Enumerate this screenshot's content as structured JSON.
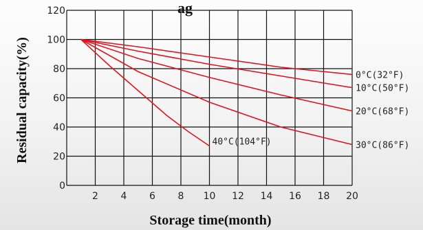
{
  "title_fragment": "ag",
  "chart_data": {
    "type": "line",
    "title": "",
    "xlabel": "Storage time(month)",
    "ylabel": "Residual capacity(%)",
    "xlim": [
      0,
      20
    ],
    "ylim": [
      0,
      120
    ],
    "x_ticks": [
      2,
      4,
      6,
      8,
      10,
      12,
      14,
      16,
      18,
      20
    ],
    "y_ticks": [
      0,
      20,
      40,
      60,
      80,
      100,
      120
    ],
    "grid": true,
    "series": [
      {
        "name": "0°C(32°F)",
        "color": "#e0141e",
        "x": [
          1,
          5,
          10,
          15,
          20
        ],
        "y": [
          100,
          95,
          88,
          81,
          76
        ]
      },
      {
        "name": "10°C(50°F)",
        "color": "#e0141e",
        "x": [
          1,
          5,
          10,
          15,
          20
        ],
        "y": [
          100,
          92,
          83,
          75,
          67
        ]
      },
      {
        "name": "20°C(68°F)",
        "color": "#e0141e",
        "x": [
          1,
          5,
          10,
          15,
          20
        ],
        "y": [
          100,
          87,
          74,
          62,
          51
        ]
      },
      {
        "name": "30°C(86°F)",
        "color": "#e0141e",
        "x": [
          1,
          5,
          10,
          15,
          20
        ],
        "y": [
          100,
          78,
          57,
          40,
          28
        ]
      },
      {
        "name": "40°C(104°F)",
        "color": "#e0141e",
        "x": [
          1,
          3,
          5,
          7,
          8.5,
          10
        ],
        "y": [
          100,
          82,
          65,
          48,
          37,
          27
        ]
      }
    ]
  }
}
